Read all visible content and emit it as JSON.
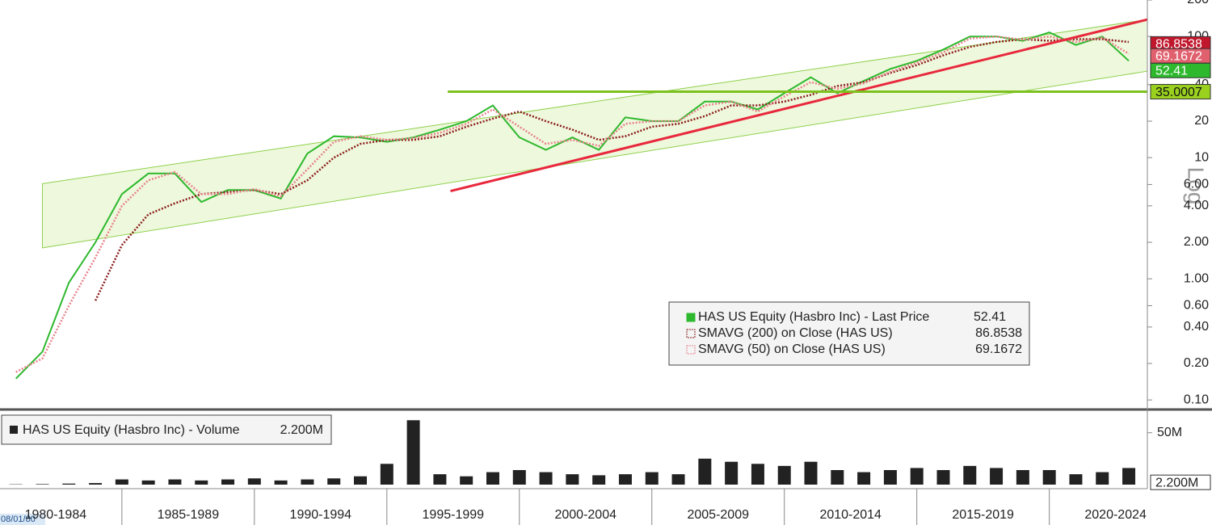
{
  "chart_data": {
    "type": "line",
    "scale": "log",
    "x": [
      1981,
      1982,
      1983,
      1984,
      1985,
      1986,
      1987,
      1988,
      1989,
      1990,
      1991,
      1992,
      1993,
      1994,
      1995,
      1996,
      1997,
      1998,
      1999,
      2000,
      2001,
      2002,
      2003,
      2004,
      2005,
      2006,
      2007,
      2008,
      2009,
      2010,
      2011,
      2012,
      2013,
      2014,
      2015,
      2016,
      2017,
      2018,
      2019,
      2020,
      2021,
      2022,
      2023
    ],
    "xlim": [
      1980.4,
      2023.7
    ],
    "categories": [
      "1980-1984",
      "1985-1989",
      "1990-1994",
      "1995-1999",
      "2000-2004",
      "2005-2009",
      "2010-2014",
      "2015-2019",
      "2020-2024"
    ],
    "start_date": "08/01/80",
    "ylim": [
      0.086,
      200
    ],
    "yticks": [
      {
        "value": 0.1,
        "label": "0.10"
      },
      {
        "value": 0.2,
        "label": "0.20"
      },
      {
        "value": 0.4,
        "label": "0.40"
      },
      {
        "value": 0.6,
        "label": "0.60"
      },
      {
        "value": 1,
        "label": "1.00"
      },
      {
        "value": 2,
        "label": "2.00"
      },
      {
        "value": 4,
        "label": "4.00"
      },
      {
        "value": 6,
        "label": "6.00"
      },
      10,
      20,
      40,
      100,
      200
    ],
    "y_axis_label": "Log",
    "series": [
      {
        "name": "HAS US Equity (Hasbro Inc) - Last Price",
        "color": "#2db82d",
        "last": 52.41,
        "values": [
          0.15,
          0.25,
          0.93,
          2.0,
          5,
          7.4,
          7.4,
          4.3,
          5.4,
          5.4,
          4.6,
          10.8,
          15,
          14.7,
          13.5,
          14.7,
          17,
          20,
          27,
          14.7,
          11.6,
          14.7,
          11.6,
          21.5,
          20,
          20,
          29,
          29,
          25,
          34,
          46,
          34,
          43,
          54,
          63,
          78,
          100,
          100,
          92,
          108,
          85,
          100,
          63
        ]
      },
      {
        "name": "SMAVG (200)  on Close (HAS US)",
        "color": "#8b1c1c",
        "last": 86.8538,
        "values": [
          null,
          null,
          null,
          0.66,
          1.9,
          3.4,
          4.2,
          5.0,
          5.2,
          5.4,
          5.0,
          6.5,
          10,
          13,
          14,
          14,
          15,
          18,
          21,
          24,
          20,
          17,
          14,
          15,
          18,
          19,
          22,
          27,
          27,
          29,
          33,
          39,
          42,
          50,
          58,
          70,
          82,
          90,
          95,
          92,
          95,
          95,
          90
        ]
      },
      {
        "name": "SMAVG (50)  on Close (HAS US)",
        "color": "#e8828c",
        "last": 69.1672,
        "values": [
          0.17,
          0.22,
          0.6,
          1.5,
          4,
          6.5,
          7.6,
          5,
          5,
          5.5,
          4.8,
          8,
          13.5,
          15,
          14,
          14.5,
          16,
          19,
          25,
          18,
          13,
          14,
          12.5,
          19,
          20,
          20,
          27,
          29,
          24,
          32,
          42,
          37,
          41,
          51,
          61,
          74,
          96,
          100,
          94,
          100,
          90,
          98,
          72
        ]
      }
    ],
    "channel": {
      "color": "#8fd14f",
      "fill": "#eef8dc",
      "x": [
        1982,
        2023.7
      ],
      "upper": [
        6.1,
        138
      ],
      "lower": [
        1.8,
        51.7
      ]
    },
    "trendline": {
      "color": "#e8283c",
      "x": [
        1997.4,
        2023.7
      ],
      "values": [
        5.3,
        138
      ]
    },
    "level": {
      "color": "#7cc11d",
      "x": [
        1997.3,
        2023.7
      ],
      "value": 35.0007
    },
    "volume": {
      "title": "HAS US Equity (Hasbro Inc) - Volume",
      "color": "#222222",
      "values": [
        0.3,
        0.5,
        1,
        1.5,
        5,
        4,
        5,
        4,
        5,
        6,
        4,
        5,
        6,
        8,
        20,
        62,
        10,
        8,
        12,
        14,
        12,
        10,
        9,
        10,
        12,
        10,
        25,
        22,
        20,
        18,
        22,
        14,
        12,
        14,
        16,
        14,
        18,
        16,
        14,
        14,
        10,
        12,
        16
      ],
      "last": 2.2,
      "last_label": "2.200M",
      "ylim": [
        0,
        70
      ],
      "yticks": [
        {
          "value": 50,
          "label": "50M"
        }
      ]
    }
  }
}
